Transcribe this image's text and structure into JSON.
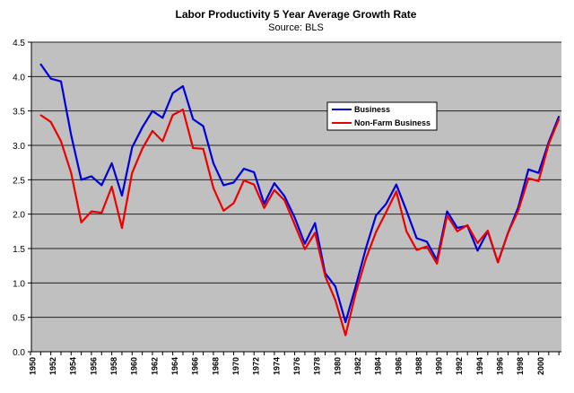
{
  "chart_data": {
    "type": "line",
    "title": "Labor Productivity 5 Year Average Growth Rate",
    "subtitle": "Source: BLS",
    "xlabel": "",
    "ylabel": "",
    "ylim": [
      0,
      4.5
    ],
    "xlim": [
      1950,
      2002
    ],
    "grid": true,
    "legend_position": "center-right",
    "y_ticks": [
      "0.0",
      "0.5",
      "1.0",
      "1.5",
      "2.0",
      "2.5",
      "3.0",
      "3.5",
      "4.0",
      "4.5"
    ],
    "x_ticks": [
      "1950",
      "1952",
      "1954",
      "1956",
      "1958",
      "1960",
      "1962",
      "1964",
      "1966",
      "1968",
      "1970",
      "1972",
      "1974",
      "1976",
      "1978",
      "1980",
      "1982",
      "1984",
      "1986",
      "1988",
      "1990",
      "1992",
      "1994",
      "1996",
      "1998",
      "2000"
    ],
    "x": [
      1951,
      1952,
      1953,
      1954,
      1955,
      1956,
      1957,
      1958,
      1959,
      1960,
      1961,
      1962,
      1963,
      1964,
      1965,
      1966,
      1967,
      1968,
      1969,
      1970,
      1971,
      1972,
      1973,
      1974,
      1975,
      1976,
      1977,
      1978,
      1979,
      1980,
      1981,
      1982,
      1983,
      1984,
      1985,
      1986,
      1987,
      1988,
      1989,
      1990,
      1991,
      1992,
      1993,
      1994,
      1995,
      1996,
      1997,
      1998,
      1999,
      2000,
      2001,
      2002
    ],
    "series": [
      {
        "name": "Business",
        "color": "#0000dd",
        "values": [
          4.18,
          3.97,
          3.93,
          3.15,
          2.5,
          2.55,
          2.42,
          2.74,
          2.27,
          2.97,
          3.26,
          3.5,
          3.4,
          3.76,
          3.86,
          3.38,
          3.28,
          2.74,
          2.42,
          2.46,
          2.66,
          2.61,
          2.15,
          2.45,
          2.26,
          1.95,
          1.57,
          1.87,
          1.14,
          0.95,
          0.43,
          0.95,
          1.5,
          1.98,
          2.15,
          2.43,
          2.05,
          1.65,
          1.6,
          1.33,
          2.04,
          1.8,
          1.83,
          1.47,
          1.75,
          1.3,
          1.73,
          2.1,
          2.65,
          2.6,
          3.05,
          3.42
        ]
      },
      {
        "name": "Non-Farm Business",
        "color": "#ee0000",
        "values": [
          3.44,
          3.34,
          3.06,
          2.6,
          1.88,
          2.04,
          2.02,
          2.4,
          1.8,
          2.6,
          2.95,
          3.21,
          3.06,
          3.44,
          3.52,
          2.96,
          2.95,
          2.38,
          2.05,
          2.16,
          2.49,
          2.43,
          2.09,
          2.35,
          2.2,
          1.85,
          1.49,
          1.73,
          1.1,
          0.75,
          0.24,
          0.85,
          1.35,
          1.74,
          2.03,
          2.33,
          1.75,
          1.48,
          1.53,
          1.28,
          1.98,
          1.75,
          1.84,
          1.58,
          1.76,
          1.3,
          1.73,
          2.05,
          2.52,
          2.48,
          3.02,
          3.38
        ]
      }
    ]
  }
}
